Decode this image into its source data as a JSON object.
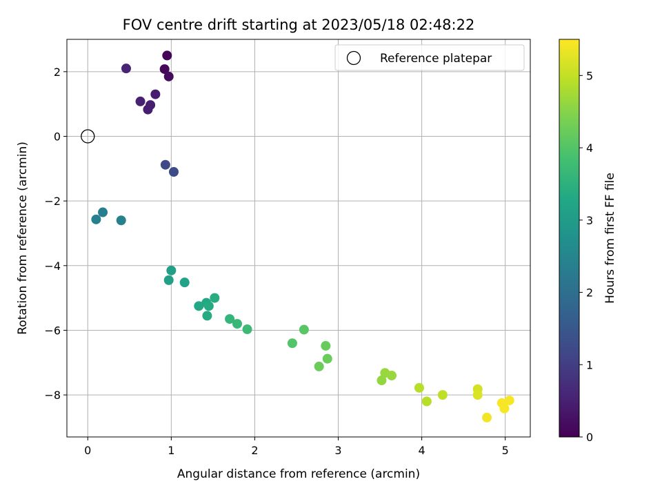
{
  "chart_data": {
    "type": "scatter",
    "title": "FOV centre drift starting at 2023/05/18 02:48:22",
    "xlabel": "Angular distance from reference (arcmin)",
    "ylabel": "Rotation from reference (arcmin)",
    "xlim": [
      -0.25,
      5.3
    ],
    "ylim": [
      -9.3,
      3.0
    ],
    "xticks": [
      0,
      1,
      2,
      3,
      4,
      5
    ],
    "yticks": [
      2,
      0,
      -2,
      -4,
      -6,
      -8
    ],
    "xtick_labels": [
      "0",
      "1",
      "2",
      "3",
      "4",
      "5"
    ],
    "ytick_labels": [
      "2",
      "0",
      "−2",
      "−4",
      "−6",
      "−8"
    ],
    "grid": true,
    "colormap": "viridis",
    "colorbar": {
      "label": "Hours from first FF file",
      "range": [
        0,
        5.5
      ],
      "ticks": [
        0,
        1,
        2,
        3,
        4,
        5
      ],
      "tick_labels": [
        "0",
        "1",
        "2",
        "3",
        "4",
        "5"
      ]
    },
    "reference_point": {
      "x": 0,
      "y": 0,
      "legend_label": "Reference platepar"
    },
    "legend_position": "top-right",
    "points": [
      {
        "x": 0.95,
        "y": 2.5,
        "c": 0.05
      },
      {
        "x": 0.92,
        "y": 2.08,
        "c": 0.1
      },
      {
        "x": 0.97,
        "y": 1.85,
        "c": 0.15
      },
      {
        "x": 0.46,
        "y": 2.1,
        "c": 0.55
      },
      {
        "x": 0.81,
        "y": 1.3,
        "c": 0.45
      },
      {
        "x": 0.63,
        "y": 1.08,
        "c": 0.5
      },
      {
        "x": 0.75,
        "y": 0.97,
        "c": 0.45
      },
      {
        "x": 0.72,
        "y": 0.83,
        "c": 0.45
      },
      {
        "x": 0.93,
        "y": -0.88,
        "c": 1.2
      },
      {
        "x": 1.03,
        "y": -1.1,
        "c": 1.25
      },
      {
        "x": 0.1,
        "y": -2.57,
        "c": 2.35
      },
      {
        "x": 0.18,
        "y": -2.35,
        "c": 2.3
      },
      {
        "x": 0.4,
        "y": -2.6,
        "c": 2.4
      },
      {
        "x": 1.0,
        "y": -4.15,
        "c": 3.1
      },
      {
        "x": 0.97,
        "y": -4.45,
        "c": 3.1
      },
      {
        "x": 1.16,
        "y": -4.52,
        "c": 3.15
      },
      {
        "x": 1.33,
        "y": -5.25,
        "c": 3.3
      },
      {
        "x": 1.42,
        "y": -5.15,
        "c": 3.3
      },
      {
        "x": 1.45,
        "y": -5.25,
        "c": 3.35
      },
      {
        "x": 1.43,
        "y": -5.55,
        "c": 3.35
      },
      {
        "x": 1.52,
        "y": -5.0,
        "c": 3.4
      },
      {
        "x": 1.7,
        "y": -5.65,
        "c": 3.6
      },
      {
        "x": 1.79,
        "y": -5.8,
        "c": 3.65
      },
      {
        "x": 1.91,
        "y": -5.97,
        "c": 3.7
      },
      {
        "x": 2.45,
        "y": -6.4,
        "c": 4.0
      },
      {
        "x": 2.59,
        "y": -5.98,
        "c": 4.05
      },
      {
        "x": 2.85,
        "y": -6.48,
        "c": 4.2
      },
      {
        "x": 2.87,
        "y": -6.88,
        "c": 4.25
      },
      {
        "x": 2.77,
        "y": -7.12,
        "c": 4.25
      },
      {
        "x": 3.52,
        "y": -7.55,
        "c": 4.6
      },
      {
        "x": 3.56,
        "y": -7.32,
        "c": 4.65
      },
      {
        "x": 3.64,
        "y": -7.4,
        "c": 4.65
      },
      {
        "x": 3.97,
        "y": -7.78,
        "c": 4.9
      },
      {
        "x": 4.06,
        "y": -8.2,
        "c": 4.9
      },
      {
        "x": 4.25,
        "y": -8.0,
        "c": 4.95
      },
      {
        "x": 4.67,
        "y": -7.82,
        "c": 5.15
      },
      {
        "x": 4.67,
        "y": -8.0,
        "c": 5.2
      },
      {
        "x": 4.78,
        "y": -8.7,
        "c": 5.4
      },
      {
        "x": 4.96,
        "y": -8.25,
        "c": 5.45
      },
      {
        "x": 4.99,
        "y": -8.42,
        "c": 5.45
      },
      {
        "x": 5.05,
        "y": -8.17,
        "c": 5.45
      }
    ]
  }
}
